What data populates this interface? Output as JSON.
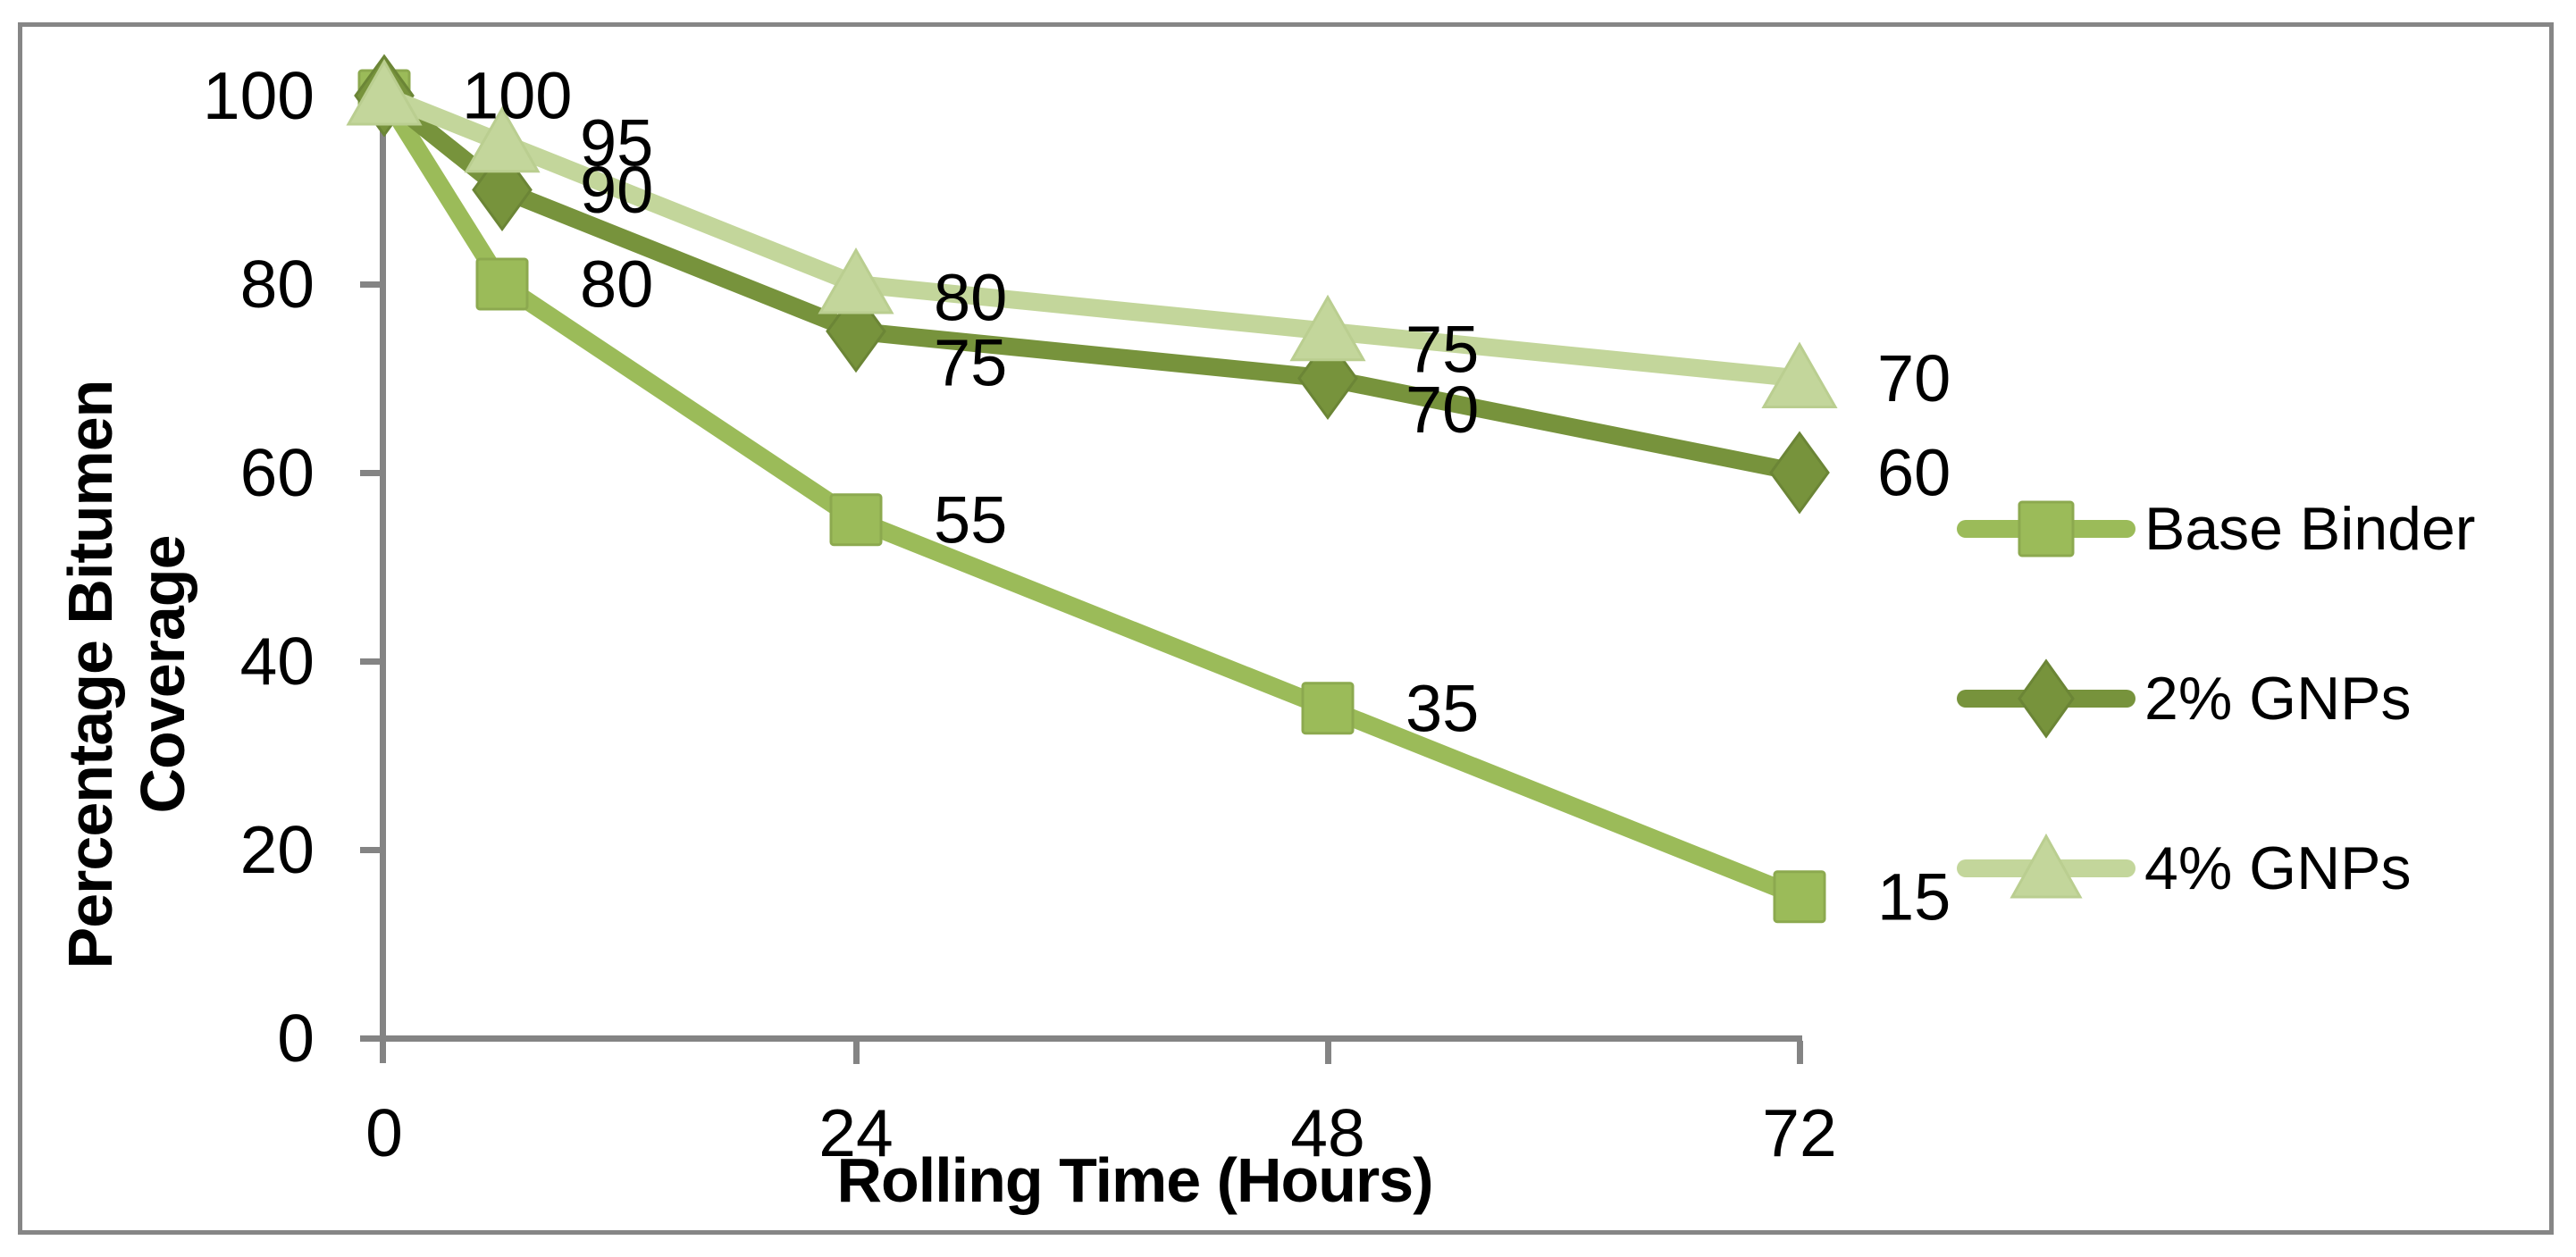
{
  "chart_data": {
    "type": "line",
    "title": "",
    "xlabel": "Rolling Time (Hours)",
    "ylabel_line1": "Percentage Bitumen",
    "ylabel_line2": "Coverage",
    "x": [
      0,
      6,
      24,
      48,
      72
    ],
    "x_ticks": [
      "0",
      "24",
      "48",
      "72"
    ],
    "x_tick_values": [
      0,
      24,
      48,
      72
    ],
    "y_ticks": [
      "0",
      "20",
      "40",
      "60",
      "80",
      "100"
    ],
    "y_tick_values": [
      0,
      20,
      40,
      60,
      80,
      100
    ],
    "xlim": [
      0,
      72
    ],
    "ylim": [
      0,
      100
    ],
    "grid": "off",
    "legend_position": "right",
    "axis_color": "#848484",
    "border_color": "#868686",
    "series": [
      {
        "name": "Base Binder",
        "color": "#9BBB59",
        "edge": "#8CA94F",
        "marker": "square",
        "values": [
          100,
          80,
          55,
          35,
          15
        ],
        "labels": [
          "100",
          "80",
          "55",
          "35",
          "15"
        ]
      },
      {
        "name": "2% GNPs",
        "color": "#77933C",
        "edge": "#6B8536",
        "marker": "diamond",
        "values": [
          100,
          90,
          75,
          70,
          60
        ],
        "labels": [
          null,
          "90",
          "75",
          "70",
          "60"
        ]
      },
      {
        "name": "4% GNPs",
        "color": "#C3D69B",
        "edge": "#BACE90",
        "marker": "triangle",
        "values": [
          100,
          95,
          80,
          75,
          70
        ],
        "labels": [
          null,
          "95",
          "80",
          "75",
          "70"
        ]
      }
    ]
  },
  "legend": {
    "items": [
      {
        "label": "Base Binder"
      },
      {
        "label": "2% GNPs"
      },
      {
        "label": "4% GNPs"
      }
    ]
  }
}
